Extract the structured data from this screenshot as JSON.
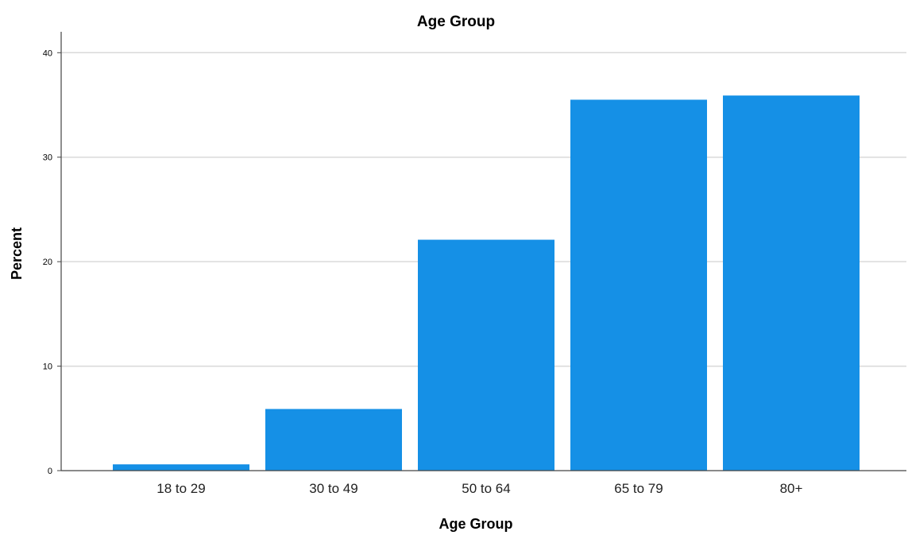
{
  "chart_data": {
    "type": "bar",
    "title": "Age Group",
    "xlabel": "Age Group",
    "ylabel": "Percent",
    "categories": [
      "18 to 29",
      "30 to 49",
      "50 to 64",
      "65 to 79",
      "80+"
    ],
    "values": [
      0.6,
      5.9,
      22.1,
      35.5,
      35.9
    ],
    "ylim": [
      0,
      42
    ],
    "yticks": [
      "0",
      "10",
      "20",
      "30",
      "40"
    ],
    "grid": true,
    "bar_color": "#1590e6",
    "grid_color": "#d9d9d9",
    "axis_color": "#444444"
  }
}
